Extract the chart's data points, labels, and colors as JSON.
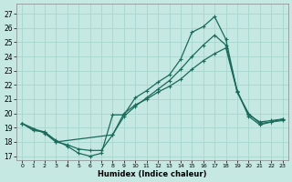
{
  "xlabel": "Humidex (Indice chaleur)",
  "bg_color": "#c5e8e3",
  "grid_color": "#a8d5cf",
  "line_color": "#1a6b5a",
  "xlim": [
    -0.5,
    23.5
  ],
  "ylim": [
    16.7,
    27.7
  ],
  "xticks": [
    0,
    1,
    2,
    3,
    4,
    5,
    6,
    7,
    8,
    9,
    10,
    11,
    12,
    13,
    14,
    15,
    16,
    17,
    18,
    19,
    20,
    21,
    22,
    23
  ],
  "yticks": [
    17,
    18,
    19,
    20,
    21,
    22,
    23,
    24,
    25,
    26,
    27
  ],
  "line1_x": [
    0,
    1,
    2,
    3,
    4,
    5,
    6,
    7,
    8,
    9,
    10,
    11,
    12,
    13,
    14,
    15,
    16,
    17,
    18,
    19,
    20,
    21,
    22,
    23
  ],
  "line1_y": [
    19.3,
    18.8,
    18.7,
    18.1,
    17.7,
    17.2,
    17.0,
    17.2,
    19.9,
    19.9,
    21.1,
    21.6,
    22.2,
    22.7,
    23.8,
    25.7,
    26.1,
    26.8,
    25.2,
    21.5,
    20.0,
    19.3,
    19.4,
    19.6
  ],
  "line2_x": [
    0,
    2,
    3,
    8,
    9,
    10,
    11,
    12,
    13,
    14,
    15,
    16,
    17,
    18,
    19,
    20,
    21,
    22,
    23
  ],
  "line2_y": [
    19.3,
    18.6,
    18.0,
    18.5,
    19.8,
    20.5,
    21.1,
    21.7,
    22.3,
    23.1,
    24.0,
    24.8,
    25.5,
    24.8,
    21.6,
    19.8,
    19.2,
    19.4,
    19.5
  ],
  "line3_x": [
    0,
    1,
    2,
    3,
    4,
    5,
    6,
    7,
    8,
    9,
    10,
    11,
    12,
    13,
    14,
    15,
    16,
    17,
    18,
    19,
    20,
    21,
    22,
    23
  ],
  "line3_y": [
    19.3,
    18.9,
    18.7,
    18.0,
    17.8,
    17.5,
    17.4,
    17.4,
    18.5,
    20.0,
    20.6,
    21.0,
    21.5,
    21.9,
    22.4,
    23.1,
    23.7,
    24.2,
    24.6,
    21.5,
    19.9,
    19.4,
    19.5,
    19.6
  ]
}
